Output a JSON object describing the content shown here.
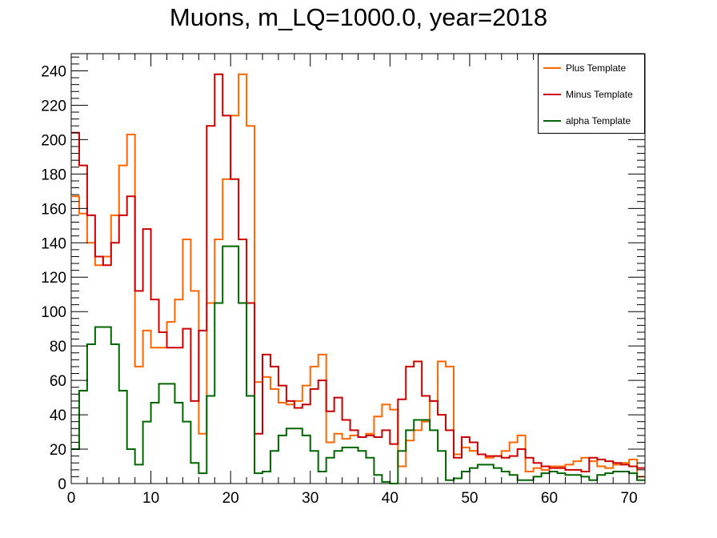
{
  "chart_data": {
    "type": "histogram",
    "title": "Muons, m_LQ=1000.0, year=2018",
    "xlabel": "",
    "ylabel": "",
    "xlim": [
      0,
      72
    ],
    "ylim": [
      0,
      250
    ],
    "x_ticks": [
      0,
      10,
      20,
      30,
      40,
      50,
      60,
      70
    ],
    "y_ticks": [
      0,
      20,
      40,
      60,
      80,
      100,
      120,
      140,
      160,
      180,
      200,
      220,
      240
    ],
    "grid": false,
    "legend_position": "top-right",
    "bin_edges_start": 0,
    "bin_width": 1,
    "series": [
      {
        "name": "Plus Template",
        "color": "#ff6600",
        "values": [
          167,
          157,
          140,
          127,
          132,
          156,
          185,
          203,
          68,
          89,
          79,
          79,
          94,
          107,
          142,
          112,
          29,
          105,
          142,
          177,
          214,
          238,
          208,
          59,
          62,
          55,
          47,
          46,
          48,
          57,
          68,
          75,
          24,
          29,
          26,
          28,
          27,
          29,
          39,
          46,
          43,
          10,
          25,
          31,
          36,
          48,
          71,
          68,
          17,
          21,
          19,
          17,
          15,
          16,
          19,
          24,
          28,
          7,
          9,
          8,
          10,
          10,
          11,
          13,
          15,
          13,
          10,
          9,
          11,
          12,
          14,
          4
        ],
        "note": ""
      },
      {
        "name": "Minus Template",
        "color": "#cc0000",
        "values": [
          204,
          185,
          156,
          132,
          127,
          140,
          156,
          167,
          112,
          148,
          107,
          88,
          79,
          79,
          90,
          48,
          89,
          208,
          238,
          214,
          177,
          142,
          105,
          29,
          75,
          68,
          57,
          48,
          44,
          46,
          55,
          60,
          42,
          50,
          37,
          31,
          27,
          28,
          27,
          31,
          23,
          49,
          68,
          71,
          51,
          48,
          40,
          31,
          15,
          27,
          24,
          17,
          16,
          16,
          15,
          16,
          20,
          15,
          12,
          10,
          9,
          9,
          8,
          8,
          7,
          15,
          14,
          13,
          12,
          11,
          10,
          9
        ]
      },
      {
        "name": "alpha Template",
        "color": "#006600",
        "values": [
          20,
          54,
          81,
          91,
          91,
          81,
          54,
          20,
          11,
          36,
          47,
          58,
          58,
          47,
          36,
          12,
          6,
          51,
          105,
          138,
          138,
          105,
          51,
          6,
          7,
          19,
          28,
          32,
          32,
          28,
          19,
          7,
          15,
          19,
          21,
          21,
          19,
          15,
          5,
          1,
          0,
          19,
          31,
          37,
          37,
          31,
          19,
          2,
          3,
          7,
          9,
          11,
          11,
          9,
          7,
          5,
          2,
          2,
          4,
          6,
          7,
          6,
          5,
          5,
          4,
          2,
          5,
          6,
          7,
          7,
          6,
          2
        ]
      }
    ]
  }
}
